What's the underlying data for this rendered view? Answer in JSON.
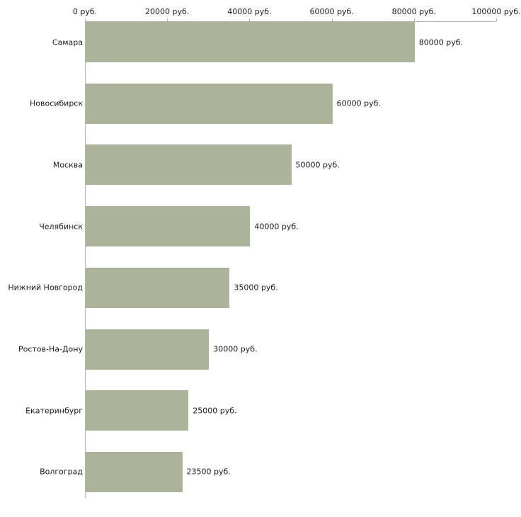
{
  "chart_data": {
    "type": "bar",
    "orientation": "horizontal",
    "title": "",
    "xlabel": "",
    "ylabel": "",
    "categories": [
      "Самара",
      "Новосибирск",
      "Москва",
      "Челябинск",
      "Нижний Новгород",
      "Ростов-На-Дону",
      "Екатеринбург",
      "Волгоград"
    ],
    "values": [
      80000,
      60000,
      50000,
      40000,
      35000,
      30000,
      25000,
      23500
    ],
    "value_labels": [
      "80000 руб.",
      "60000 руб.",
      "50000 руб.",
      "40000 руб.",
      "35000 руб.",
      "30000 руб.",
      "25000 руб.",
      "23500 руб."
    ],
    "xlim": [
      0,
      100000
    ],
    "x_ticks": [
      0,
      20000,
      40000,
      60000,
      80000,
      100000
    ],
    "x_tick_labels": [
      "0 руб.",
      "20000 руб.",
      "40000 руб.",
      "60000 руб.",
      "80000 руб.",
      "100000 руб."
    ],
    "tick_label_unit": "руб.",
    "grid": false,
    "legend": false,
    "colors": {
      "bar_fill": "#abb398",
      "axis_line": "#b3b3b3",
      "text": "#1a1a1a",
      "background": "#ffffff"
    }
  }
}
